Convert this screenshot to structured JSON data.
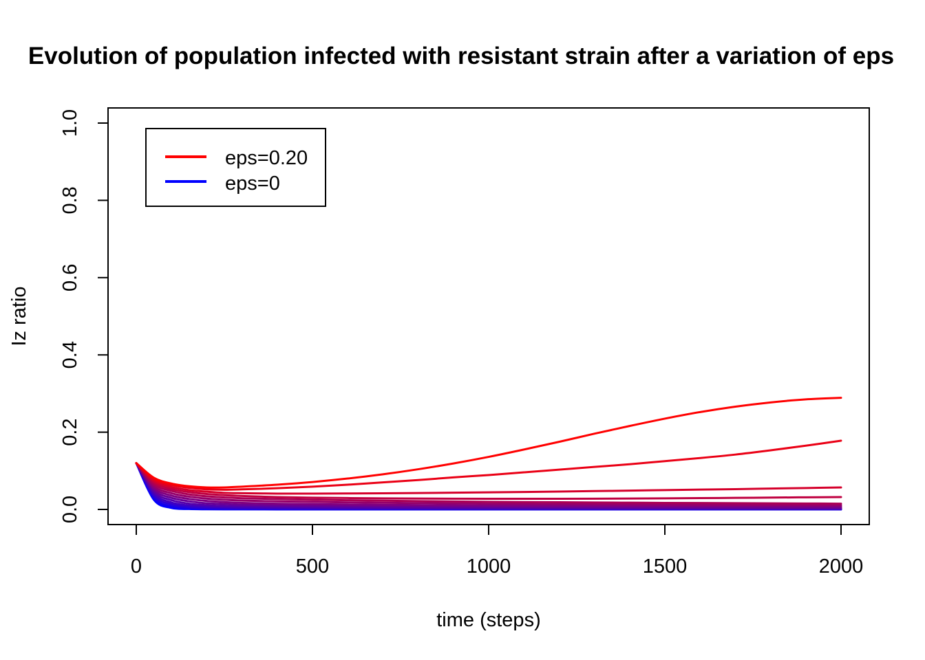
{
  "chart_data": {
    "type": "line",
    "title": "Evolution of population infected with resistant strain after a variation of eps",
    "xlabel": "time (steps)",
    "ylabel": "Iz ratio",
    "xlim": [
      0,
      2000
    ],
    "ylim": [
      0,
      1
    ],
    "x_ticks": [
      0,
      500,
      1000,
      1500,
      2000
    ],
    "x_tick_labels": [
      "0",
      "500",
      "1000",
      "1500",
      "2000"
    ],
    "y_ticks": [
      0.0,
      0.2,
      0.4,
      0.6,
      0.8,
      1.0
    ],
    "y_tick_labels": [
      "0.0",
      "0.2",
      "0.4",
      "0.6",
      "0.8",
      "1.0"
    ],
    "grid": false,
    "legend": {
      "position": "top-left",
      "entries": [
        {
          "label": "eps=0.20",
          "color": "#ff0000"
        },
        {
          "label": "eps=0",
          "color": "#0000ff"
        }
      ]
    },
    "color_gradient": {
      "from": "#0000ff",
      "to": "#ff0000"
    },
    "x": [
      0,
      50,
      100,
      150,
      200,
      250,
      300,
      400,
      500,
      600,
      700,
      800,
      900,
      1000,
      1100,
      1200,
      1300,
      1400,
      1500,
      1600,
      1700,
      1800,
      1900,
      2000
    ],
    "series": [
      {
        "values": [
          0.12,
          0.025,
          0.004,
          0.001,
          0.0005,
          0.0003,
          0.0002,
          0.0001,
          0.0001,
          0.0001,
          0.0001,
          0.0001,
          0.0001,
          0.0001,
          0.0001,
          0.0001,
          0.0001,
          0.0001,
          0.0001,
          0.0001,
          0.0001,
          0.0001,
          0.0001,
          0.0001
        ]
      },
      {
        "values": [
          0.12,
          0.03,
          0.008,
          0.003,
          0.0015,
          0.001,
          0.0008,
          0.0006,
          0.0005,
          0.0004,
          0.0004,
          0.0003,
          0.0003,
          0.0003,
          0.0003,
          0.0003,
          0.0003,
          0.0002,
          0.0002,
          0.0002,
          0.0002,
          0.0002,
          0.0002,
          0.0002
        ]
      },
      {
        "values": [
          0.12,
          0.035,
          0.013,
          0.006,
          0.004,
          0.003,
          0.0025,
          0.002,
          0.0017,
          0.0015,
          0.0013,
          0.0012,
          0.0011,
          0.001,
          0.001,
          0.0009,
          0.0009,
          0.0008,
          0.0008,
          0.0008,
          0.0007,
          0.0007,
          0.0007,
          0.0007
        ]
      },
      {
        "values": [
          0.12,
          0.04,
          0.018,
          0.01,
          0.007,
          0.006,
          0.005,
          0.004,
          0.0035,
          0.003,
          0.0028,
          0.0026,
          0.0024,
          0.0022,
          0.0021,
          0.002,
          0.0019,
          0.0018,
          0.0017,
          0.0017,
          0.0016,
          0.0016,
          0.0015,
          0.0015
        ]
      },
      {
        "values": [
          0.12,
          0.045,
          0.024,
          0.015,
          0.011,
          0.009,
          0.008,
          0.0068,
          0.006,
          0.0054,
          0.005,
          0.0046,
          0.0043,
          0.004,
          0.0038,
          0.0036,
          0.0035,
          0.0033,
          0.0032,
          0.0031,
          0.003,
          0.0029,
          0.0028,
          0.0027
        ]
      },
      {
        "values": [
          0.12,
          0.05,
          0.03,
          0.021,
          0.016,
          0.014,
          0.012,
          0.0105,
          0.0095,
          0.0087,
          0.008,
          0.0075,
          0.007,
          0.0066,
          0.0062,
          0.0059,
          0.0056,
          0.0053,
          0.0051,
          0.0049,
          0.0047,
          0.0045,
          0.0044,
          0.0042
        ]
      },
      {
        "values": [
          0.12,
          0.055,
          0.036,
          0.027,
          0.022,
          0.019,
          0.017,
          0.015,
          0.0138,
          0.0128,
          0.012,
          0.0113,
          0.0107,
          0.0102,
          0.0097,
          0.0093,
          0.009,
          0.0087,
          0.0084,
          0.0081,
          0.0079,
          0.0077,
          0.0075,
          0.0073
        ]
      },
      {
        "values": [
          0.12,
          0.06,
          0.042,
          0.033,
          0.028,
          0.025,
          0.023,
          0.021,
          0.0195,
          0.0183,
          0.0173,
          0.0165,
          0.0157,
          0.015,
          0.0144,
          0.0138,
          0.0133,
          0.0128,
          0.0124,
          0.012,
          0.0117,
          0.0114,
          0.0111,
          0.0108
        ]
      },
      {
        "values": [
          0.12,
          0.065,
          0.048,
          0.039,
          0.034,
          0.031,
          0.029,
          0.027,
          0.0252,
          0.0238,
          0.0226,
          0.0216,
          0.0207,
          0.0199,
          0.0192,
          0.0186,
          0.018,
          0.0175,
          0.017,
          0.0166,
          0.0162,
          0.0158,
          0.0154,
          0.015
        ]
      },
      {
        "values": [
          0.12,
          0.07,
          0.053,
          0.045,
          0.04,
          0.037,
          0.035,
          0.032,
          0.0305,
          0.0295,
          0.0288,
          0.0282,
          0.0278,
          0.0276,
          0.0275,
          0.0276,
          0.0278,
          0.0282,
          0.0287,
          0.0293,
          0.03,
          0.0307,
          0.0314,
          0.032
        ]
      },
      {
        "values": [
          0.12,
          0.074,
          0.058,
          0.05,
          0.046,
          0.043,
          0.042,
          0.041,
          0.041,
          0.0413,
          0.0418,
          0.0425,
          0.0433,
          0.0442,
          0.0452,
          0.0463,
          0.0475,
          0.0487,
          0.05,
          0.0513,
          0.0526,
          0.054,
          0.0554,
          0.057
        ]
      },
      {
        "values": [
          0.12,
          0.078,
          0.063,
          0.056,
          0.052,
          0.051,
          0.052,
          0.055,
          0.059,
          0.064,
          0.07,
          0.076,
          0.083,
          0.089,
          0.096,
          0.103,
          0.11,
          0.117,
          0.125,
          0.133,
          0.142,
          0.153,
          0.165,
          0.178
        ]
      },
      {
        "values": [
          0.12,
          0.082,
          0.067,
          0.06,
          0.057,
          0.057,
          0.059,
          0.064,
          0.071,
          0.08,
          0.091,
          0.104,
          0.119,
          0.136,
          0.155,
          0.175,
          0.196,
          0.216,
          0.235,
          0.252,
          0.266,
          0.277,
          0.285,
          0.289
        ]
      }
    ]
  }
}
